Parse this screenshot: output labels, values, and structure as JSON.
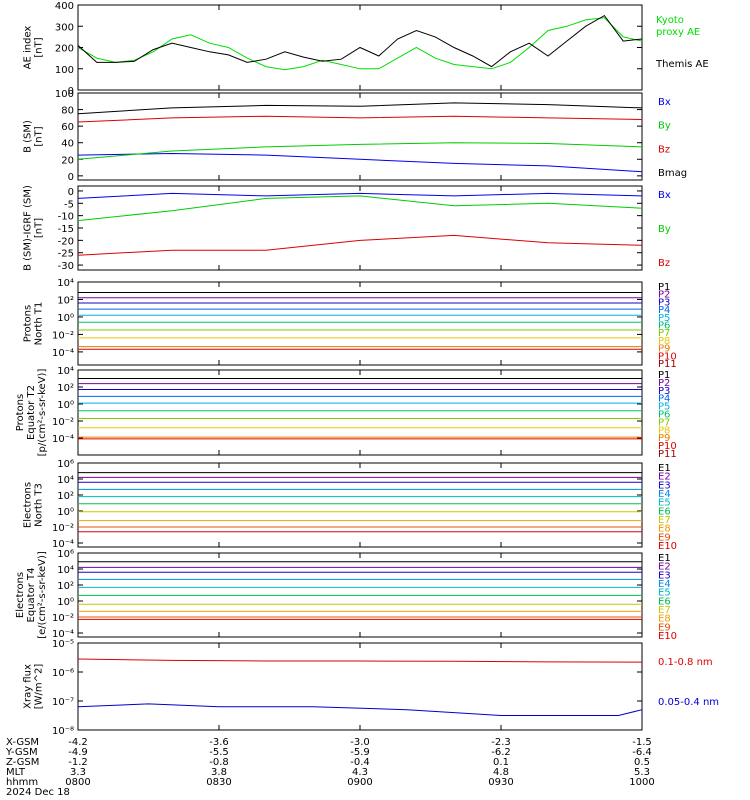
{
  "x_range": [
    0,
    120
  ],
  "panels": [
    {
      "ylabel": [
        "AE index",
        "[nT]"
      ],
      "yscale": "linear",
      "ylim": [
        0,
        400
      ],
      "ticks": [
        "0",
        "100",
        "200",
        "300",
        "400"
      ],
      "tick_values": [
        0,
        100,
        200,
        300,
        400
      ],
      "series": [
        {
          "name": "Kyoto proxy AE",
          "legend_lines": [
            "Kyoto",
            "proxy AE"
          ],
          "color": "#00dd00",
          "x": [
            0,
            4,
            8,
            12,
            16,
            20,
            24,
            28,
            32,
            36,
            40,
            44,
            48,
            52,
            56,
            60,
            64,
            68,
            72,
            76,
            80,
            84,
            88,
            92,
            96,
            100,
            104,
            108,
            112,
            116,
            120
          ],
          "y": [
            200,
            150,
            130,
            140,
            180,
            240,
            260,
            220,
            200,
            150,
            110,
            95,
            110,
            140,
            120,
            100,
            100,
            150,
            200,
            150,
            120,
            110,
            100,
            130,
            200,
            280,
            300,
            330,
            340,
            250,
            230
          ]
        },
        {
          "name": "Themis AE",
          "legend_lines": [
            "",
            "Themis AE"
          ],
          "color": "#000000",
          "x": [
            0,
            4,
            8,
            12,
            16,
            20,
            24,
            28,
            32,
            36,
            40,
            44,
            48,
            52,
            56,
            60,
            64,
            68,
            72,
            76,
            80,
            84,
            88,
            92,
            96,
            100,
            104,
            108,
            112,
            116,
            120
          ],
          "y": [
            210,
            130,
            130,
            135,
            190,
            220,
            200,
            180,
            165,
            130,
            145,
            180,
            155,
            135,
            145,
            200,
            160,
            240,
            280,
            250,
            200,
            160,
            110,
            180,
            220,
            160,
            230,
            300,
            350,
            230,
            240
          ]
        }
      ]
    },
    {
      "ylabel": [
        "B (SM)",
        "[nT]"
      ],
      "yscale": "linear",
      "ylim": [
        -5,
        100
      ],
      "ticks": [
        "0",
        "20",
        "40",
        "60",
        "80",
        "100"
      ],
      "tick_values": [
        0,
        20,
        40,
        60,
        80,
        100
      ],
      "series": [
        {
          "name": "Bx",
          "color": "#0000ee",
          "x": [
            0,
            20,
            40,
            60,
            80,
            100,
            120
          ],
          "y": [
            25,
            27,
            25,
            20,
            15,
            12,
            5
          ]
        },
        {
          "name": "By",
          "color": "#00cc00",
          "x": [
            0,
            20,
            40,
            60,
            80,
            100,
            120
          ],
          "y": [
            20,
            30,
            35,
            38,
            40,
            39,
            35
          ]
        },
        {
          "name": "Bz",
          "color": "#dd0000",
          "x": [
            0,
            20,
            40,
            60,
            80,
            100,
            120
          ],
          "y": [
            65,
            70,
            72,
            70,
            72,
            70,
            68
          ]
        },
        {
          "name": "Bmag",
          "color": "#000000",
          "x": [
            0,
            20,
            40,
            60,
            80,
            100,
            120
          ],
          "y": [
            75,
            82,
            85,
            84,
            88,
            86,
            82
          ]
        }
      ]
    },
    {
      "ylabel": [
        "B (SM)-IGRF (SM)",
        "[nT]"
      ],
      "yscale": "linear",
      "ylim": [
        -32,
        2
      ],
      "ticks": [
        "0",
        "-5",
        "-10",
        "-15",
        "-20",
        "-25",
        "-30"
      ],
      "tick_values": [
        0,
        -5,
        -10,
        -15,
        -20,
        -25,
        -30
      ],
      "series": [
        {
          "name": "Bx",
          "color": "#0000ee",
          "x": [
            0,
            20,
            40,
            60,
            80,
            100,
            120
          ],
          "y": [
            -3,
            -1,
            -2,
            -1,
            -2,
            -1,
            -2
          ]
        },
        {
          "name": "By",
          "color": "#00cc00",
          "x": [
            0,
            20,
            40,
            60,
            80,
            100,
            120
          ],
          "y": [
            -12,
            -8,
            -3,
            -2,
            -6,
            -5,
            -7
          ]
        },
        {
          "name": "Bz",
          "color": "#dd0000",
          "x": [
            0,
            20,
            40,
            60,
            80,
            100,
            120
          ],
          "y": [
            -26,
            -24,
            -24,
            -20,
            -18,
            -21,
            -22
          ]
        }
      ]
    },
    {
      "ylabel": [
        "Protons",
        "North T1"
      ],
      "yscale": "log",
      "ylim": [
        -5.5,
        4
      ],
      "ticks": [
        "10⁴",
        "10²",
        "10⁰",
        "10⁻²",
        "10⁻⁴"
      ],
      "tick_values": [
        4,
        2,
        0,
        -2,
        -4
      ],
      "series": [
        {
          "name": "P1",
          "color": "#000000",
          "levels": [
            2.8
          ]
        },
        {
          "name": "P2",
          "color": "#7a00a0",
          "levels": [
            2.2
          ]
        },
        {
          "name": "P3",
          "color": "#1a00c8",
          "levels": [
            1.6
          ]
        },
        {
          "name": "P4",
          "color": "#0066ee",
          "levels": [
            0.9
          ]
        },
        {
          "name": "P5",
          "color": "#00b0e8",
          "levels": [
            0.2
          ]
        },
        {
          "name": "P6",
          "color": "#00c070",
          "levels": [
            -0.6
          ]
        },
        {
          "name": "P7",
          "color": "#80c800",
          "levels": [
            -1.5
          ]
        },
        {
          "name": "P8",
          "color": "#e8c800",
          "levels": [
            -2.4
          ]
        },
        {
          "name": "P9",
          "color": "#f07800",
          "levels": [
            -3.4
          ]
        },
        {
          "name": "P10",
          "color": "#e00000",
          "levels": [
            -3.7
          ]
        },
        {
          "name": "P11",
          "color": "#9a0000",
          "levels": []
        }
      ]
    },
    {
      "ylabel": [
        "Protons",
        "Equator T2",
        "[p/(cm²-s-sr-keV)]"
      ],
      "yscale": "log",
      "ylim": [
        -6,
        4
      ],
      "ticks": [
        "10⁴",
        "10²",
        "10⁰",
        "10⁻²",
        "10⁻⁴"
      ],
      "tick_values": [
        4,
        2,
        0,
        -2,
        -4
      ],
      "series": [
        {
          "name": "P1",
          "color": "#000000",
          "levels": [
            3.0
          ]
        },
        {
          "name": "P2",
          "color": "#7a00a0",
          "levels": [
            2.4
          ]
        },
        {
          "name": "P3",
          "color": "#1a00c8",
          "levels": [
            1.7
          ]
        },
        {
          "name": "P4",
          "color": "#0066ee",
          "levels": [
            0.9
          ]
        },
        {
          "name": "P5",
          "color": "#00b0e8",
          "levels": [
            0.1
          ]
        },
        {
          "name": "P6",
          "color": "#00c070",
          "levels": [
            -0.8
          ]
        },
        {
          "name": "P7",
          "color": "#80c800",
          "levels": [
            -1.7
          ]
        },
        {
          "name": "P8",
          "color": "#e8c800",
          "levels": [
            -2.8
          ]
        },
        {
          "name": "P9",
          "color": "#f07800",
          "levels": [
            -3.9
          ]
        },
        {
          "name": "P10",
          "color": "#e00000",
          "levels": [
            -4.1
          ]
        },
        {
          "name": "P11",
          "color": "#9a0000",
          "levels": []
        }
      ]
    },
    {
      "ylabel": [
        "Electrons",
        "North T3"
      ],
      "yscale": "log",
      "ylim": [
        -4.5,
        6
      ],
      "ticks": [
        "10⁶",
        "10⁴",
        "10²",
        "10⁰",
        "10⁻²",
        "10⁻⁴"
      ],
      "tick_values": [
        6,
        4,
        2,
        0,
        -2,
        -4
      ],
      "series": [
        {
          "name": "E1",
          "color": "#000000",
          "levels": [
            4.8
          ]
        },
        {
          "name": "E2",
          "color": "#7a00a0",
          "levels": [
            4.2
          ]
        },
        {
          "name": "E3",
          "color": "#1a00c8",
          "levels": [
            3.6
          ]
        },
        {
          "name": "E4",
          "color": "#0088ee",
          "levels": [
            2.7
          ]
        },
        {
          "name": "E5",
          "color": "#00b8c0",
          "levels": [
            1.8
          ]
        },
        {
          "name": "E6",
          "color": "#00c050",
          "levels": [
            0.9
          ]
        },
        {
          "name": "E7",
          "color": "#c8c800",
          "levels": [
            -0.1
          ]
        },
        {
          "name": "E8",
          "color": "#f0a000",
          "levels": [
            -1.2
          ]
        },
        {
          "name": "E9",
          "color": "#e85000",
          "levels": [
            -2.0
          ]
        },
        {
          "name": "E10",
          "color": "#dd0000",
          "levels": [
            -2.6
          ]
        }
      ]
    },
    {
      "ylabel": [
        "Electrons",
        "Equator T4",
        "[e/(cm²-s-sr-keV)]"
      ],
      "yscale": "log",
      "ylim": [
        -4.5,
        6
      ],
      "ticks": [
        "10⁶",
        "10⁴",
        "10²",
        "10⁰",
        "10⁻²",
        "10⁻⁴"
      ],
      "tick_values": [
        6,
        4,
        2,
        0,
        -2,
        -4
      ],
      "series": [
        {
          "name": "E1",
          "color": "#000000",
          "levels": [
            4.9
          ]
        },
        {
          "name": "E2",
          "color": "#7a00a0",
          "levels": [
            4.2
          ]
        },
        {
          "name": "E3",
          "color": "#1a00c8",
          "levels": [
            3.6
          ]
        },
        {
          "name": "E4",
          "color": "#0088ee",
          "levels": [
            2.7
          ]
        },
        {
          "name": "E5",
          "color": "#00b8c0",
          "levels": [
            1.7
          ]
        },
        {
          "name": "E6",
          "color": "#00c050",
          "levels": [
            0.7
          ]
        },
        {
          "name": "E7",
          "color": "#c8c800",
          "levels": [
            -0.4
          ]
        },
        {
          "name": "E8",
          "color": "#f0a000",
          "levels": [
            -1.3
          ]
        },
        {
          "name": "E9",
          "color": "#e85000",
          "levels": [
            -2.0
          ]
        },
        {
          "name": "E10",
          "color": "#dd0000",
          "levels": [
            -2.3
          ]
        }
      ]
    },
    {
      "ylabel": [
        "Xray flux",
        "[W/m^2]"
      ],
      "yscale": "log",
      "ylim": [
        -8,
        -5
      ],
      "ticks": [
        "10⁻⁵",
        "10⁻⁶",
        "10⁻⁷",
        "10⁻⁸"
      ],
      "tick_values": [
        -5,
        -6,
        -7,
        -8
      ],
      "series": [
        {
          "name": "0.1-0.8 nm",
          "color": "#dd0000",
          "x": [
            0,
            20,
            40,
            60,
            80,
            100,
            120
          ],
          "y": [
            -5.55,
            -5.6,
            -5.62,
            -5.62,
            -5.63,
            -5.65,
            -5.66
          ]
        },
        {
          "name": "0.05-0.4 nm",
          "color": "#0000cc",
          "x": [
            0,
            15,
            30,
            50,
            70,
            90,
            105,
            115,
            120
          ],
          "y": [
            -7.2,
            -7.1,
            -7.2,
            -7.2,
            -7.3,
            -7.5,
            -7.5,
            -7.5,
            -7.3
          ]
        }
      ]
    }
  ],
  "orbit_table": {
    "row_labels": [
      "X-GSM",
      "Y-GSM",
      "Z-GSM",
      "MLT",
      "hhmm"
    ],
    "columns": [
      {
        "values": [
          "-4.2",
          "-4.9",
          "-1.2",
          "3.3",
          "0800"
        ]
      },
      {
        "values": [
          "-3.6",
          "-5.5",
          "-0.8",
          "3.8",
          "0830"
        ]
      },
      {
        "values": [
          "-3.0",
          "-5.9",
          "-0.4",
          "4.3",
          "0900"
        ]
      },
      {
        "values": [
          "-2.3",
          "-6.2",
          "0.1",
          "4.8",
          "0930"
        ]
      },
      {
        "values": [
          "-1.5",
          "-6.4",
          "0.5",
          "5.3",
          "1000"
        ]
      }
    ],
    "date": "2024 Dec 18"
  }
}
